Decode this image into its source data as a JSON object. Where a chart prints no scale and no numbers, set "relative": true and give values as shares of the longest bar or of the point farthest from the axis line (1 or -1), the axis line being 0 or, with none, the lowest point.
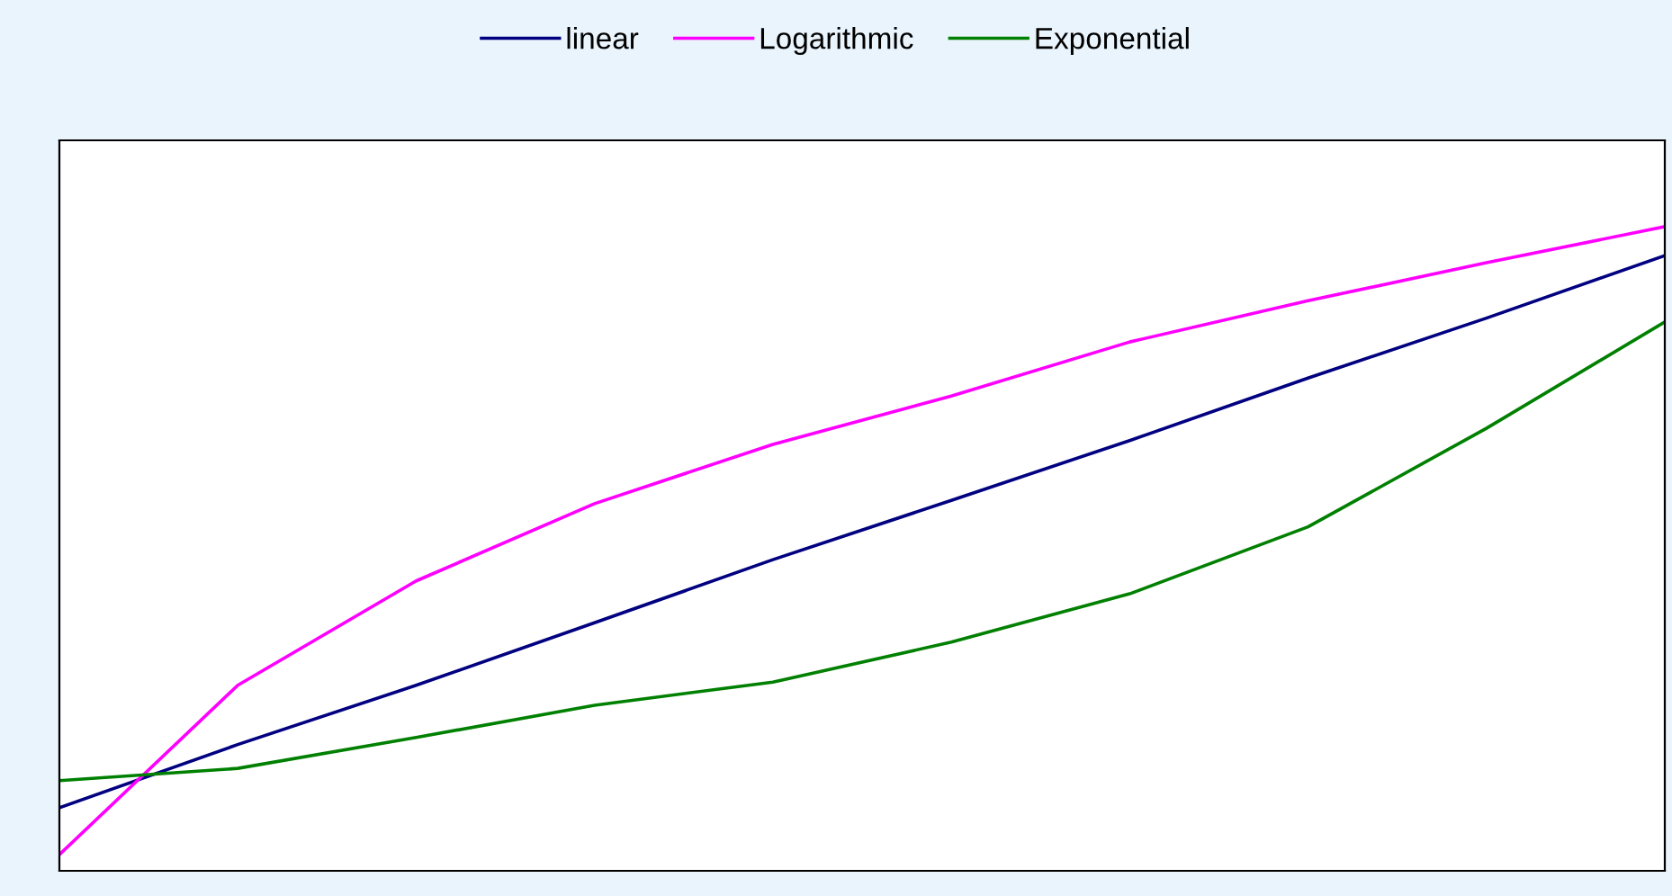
{
  "chart_data": {
    "type": "line",
    "relative": true,
    "categories": [
      null,
      null,
      null,
      null,
      null,
      null,
      null,
      null,
      null,
      null
    ],
    "series": [
      {
        "name": "linear",
        "color": "#000080",
        "values": [
          0.098,
          0.196,
          0.288,
          0.385,
          0.483,
          0.575,
          0.668,
          0.765,
          0.858,
          0.955
        ]
      },
      {
        "name": "Logarithmic",
        "color": "#ff00ff",
        "values": [
          0.025,
          0.288,
          0.45,
          0.57,
          0.662,
          0.737,
          0.821,
          0.885,
          0.944,
          1
        ]
      },
      {
        "name": "Exponential",
        "color": "#008000",
        "values": [
          0.14,
          0.159,
          0.207,
          0.257,
          0.293,
          0.355,
          0.43,
          0.534,
          0.687,
          0.852
        ]
      }
    ],
    "legend": "top",
    "marker": "none",
    "line_style": "solid"
  }
}
